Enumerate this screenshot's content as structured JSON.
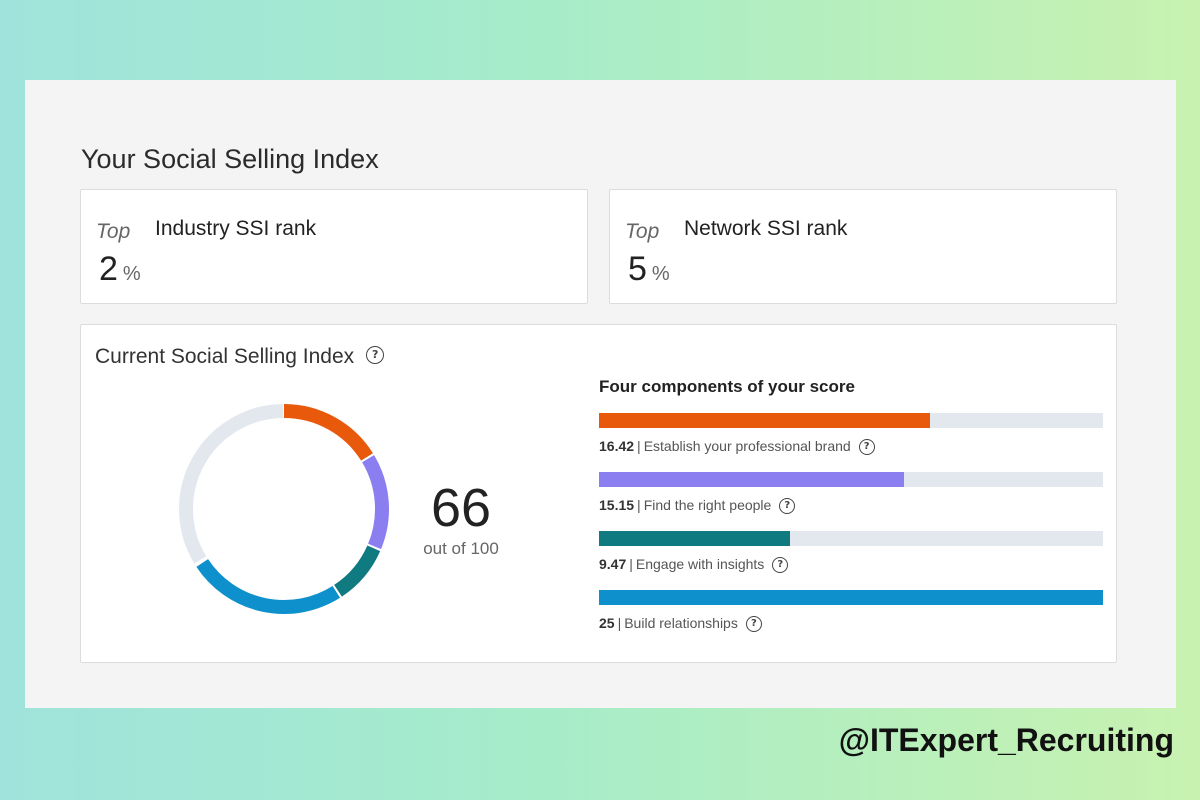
{
  "page": {
    "title": "Your Social Selling Index"
  },
  "ranks": [
    {
      "top_label": "Top",
      "value": "2",
      "unit": "%",
      "label": "Industry SSI rank"
    },
    {
      "top_label": "Top",
      "value": "5",
      "unit": "%",
      "label": "Network SSI rank"
    }
  ],
  "ssi": {
    "title": "Current Social Selling Index",
    "help_icon": "question-circle-icon",
    "score": "66",
    "score_sub": "out of 100",
    "components_title": "Four components of your score",
    "max_per_component": 25,
    "components": [
      {
        "value": 16.42,
        "value_text": "16.42",
        "separator": "|",
        "label": "Establish your professional brand",
        "color": "#e8590c"
      },
      {
        "value": 15.15,
        "value_text": "15.15",
        "separator": "|",
        "label": "Find the right people",
        "color": "#8b7ef0"
      },
      {
        "value": 9.47,
        "value_text": "9.47",
        "separator": "|",
        "label": "Engage with insights",
        "color": "#0f7a80"
      },
      {
        "value": 25,
        "value_text": "25",
        "separator": "|",
        "label": "Build relationships",
        "color": "#0e90cc"
      }
    ],
    "track_color": "#e3e8ee"
  },
  "watermark": "@ITExpert_Recruiting"
}
